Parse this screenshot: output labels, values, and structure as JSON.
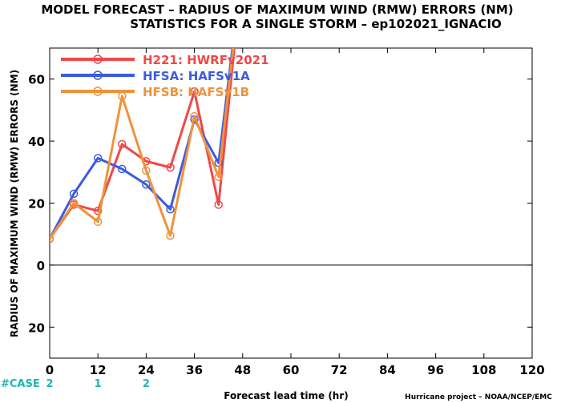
{
  "chart_data": {
    "type": "line",
    "title": "MODEL FORECAST – RADIUS OF MAXIMUM WIND (RMW) ERRORS (NM)",
    "subtitle": "STATISTICS FOR A SINGLE STORM – ep102021_IGNACIO",
    "xlabel": "Forecast lead time (hr)",
    "ylabel": "RADIUS OF MAXIMUM WIND (RMW) ERRORS (NM)",
    "xlim": [
      0,
      120
    ],
    "ylim": [
      -30,
      70
    ],
    "xticks": [
      0,
      12,
      24,
      36,
      48,
      60,
      72,
      84,
      96,
      108,
      120
    ],
    "yticks": [
      -20,
      0,
      20,
      40,
      60
    ],
    "ytick_labels": [
      "20",
      "0",
      "20",
      "40",
      "60"
    ],
    "grid": false,
    "legend_position": "top-left",
    "series": [
      {
        "name": "H221:  HWRFv2021",
        "color": "#f04848",
        "x": [
          0,
          6,
          12,
          18,
          24,
          30,
          36,
          42,
          48
        ],
        "y": [
          8.5,
          19.5,
          17.5,
          39,
          33.5,
          31.5,
          56,
          19.5,
          97
        ]
      },
      {
        "name": "HFSA:  HAFSv1A",
        "color": "#3b5be0",
        "x": [
          0,
          6,
          12,
          18,
          24,
          30,
          36,
          42,
          48
        ],
        "y": [
          8.5,
          23,
          34.5,
          31,
          26,
          18,
          47,
          33,
          97
        ]
      },
      {
        "name": "HFSB:  HAFSv1B",
        "color": "#f0923a",
        "x": [
          0,
          6,
          12,
          18,
          24,
          30,
          36,
          42,
          48
        ],
        "y": [
          8.5,
          20,
          14,
          54.5,
          30.5,
          9.5,
          48,
          28.5,
          97
        ]
      }
    ],
    "case_counts": {
      "label": "#CASE",
      "x": [
        0,
        12,
        24
      ],
      "values": [
        "2",
        "1",
        "2"
      ]
    },
    "credit": "Hurricane project – NOAA/NCEP/EMC"
  }
}
